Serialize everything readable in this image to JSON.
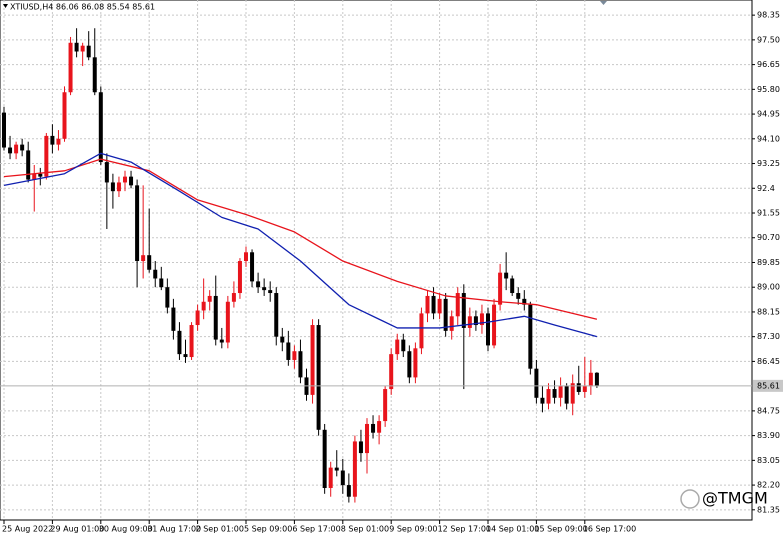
{
  "chart_data": {
    "type": "candlestick",
    "title": "XTIUSD,H4 86.06 86.08 85.54 85.61",
    "watermark": "@TMGM",
    "categories": [
      "25 Aug 2022",
      null,
      null,
      null,
      null,
      null,
      null,
      null,
      "29 Aug 01:00",
      null,
      null,
      null,
      null,
      null,
      null,
      null,
      "30 Aug 09:00",
      null,
      null,
      null,
      null,
      null,
      null,
      null,
      "31 Aug 17:00",
      null,
      null,
      null,
      null,
      null,
      null,
      null,
      "2 Sep 01:00",
      null,
      null,
      null,
      null,
      null,
      null,
      null,
      "5 Sep 09:00",
      null,
      null,
      null,
      null,
      null,
      null,
      null,
      "6 Sep 17:00",
      null,
      null,
      null,
      null,
      null,
      null,
      null,
      "8 Sep 01:00",
      null,
      null,
      null,
      null,
      null,
      null,
      null,
      "9 Sep 09:00",
      null,
      null,
      null,
      null,
      null,
      null,
      null,
      "12 Sep 17:00",
      null,
      null,
      null,
      null,
      null,
      null,
      null,
      "14 Sep 01:00",
      null,
      null,
      null,
      null,
      null,
      null,
      null,
      "15 Sep 09:00",
      null,
      null,
      null,
      null,
      null,
      null,
      null,
      "16 Sep 17:00",
      null,
      null
    ],
    "open": [
      95.0,
      93.8,
      93.6,
      93.9,
      93.7,
      92.7,
      92.9,
      92.8,
      94.2,
      93.9,
      94.1,
      95.7,
      97.4,
      97.1,
      97.3,
      96.9,
      95.7,
      93.3,
      92.6,
      92.3,
      92.6,
      92.8,
      92.5,
      89.9,
      90.1,
      89.6,
      89.3,
      89.0,
      88.3,
      87.5,
      86.7,
      86.6,
      87.7,
      88.2,
      88.5,
      88.7,
      87.2,
      87.1,
      88.5,
      88.8,
      89.9,
      90.2,
      89.2,
      89.0,
      88.9,
      88.8,
      87.3,
      87.1,
      86.5,
      86.8,
      85.9,
      85.3,
      87.7,
      84.1,
      82.1,
      82.8,
      82.7,
      82.2,
      81.8,
      83.7,
      83.3,
      84.3,
      84.0,
      84.4,
      85.5,
      86.7,
      87.2,
      86.8,
      85.9,
      86.9,
      88.1,
      88.7,
      88.1,
      88.6,
      87.5,
      88.0,
      88.8,
      87.6,
      88.0,
      87.7,
      88.1,
      87.0,
      88.4,
      89.5,
      89.3,
      88.8,
      88.6,
      88.4,
      86.2,
      85.2,
      85.0,
      85.5,
      85.2,
      85.6,
      85.0,
      85.7,
      85.4,
      85.6,
      86.06
    ],
    "high": [
      95.2,
      94.2,
      94.0,
      94.1,
      94.0,
      93.2,
      93.1,
      94.3,
      94.6,
      94.4,
      95.9,
      97.6,
      97.9,
      97.4,
      97.8,
      97.9,
      95.9,
      93.6,
      92.9,
      92.8,
      93.0,
      93.0,
      92.7,
      92.5,
      91.7,
      89.9,
      89.7,
      89.3,
      88.6,
      87.8,
      87.2,
      87.8,
      88.4,
      89.3,
      88.9,
      89.4,
      87.6,
      88.7,
      89.2,
      90.0,
      90.4,
      90.3,
      89.5,
      89.3,
      89.2,
      89.0,
      87.6,
      87.5,
      87.0,
      87.2,
      86.2,
      87.9,
      87.9,
      84.3,
      83.0,
      83.4,
      83.1,
      82.6,
      83.9,
      84.1,
      84.5,
      84.6,
      84.6,
      85.6,
      86.9,
      87.4,
      87.4,
      87.0,
      87.1,
      88.3,
      88.9,
      89.0,
      88.8,
      88.8,
      88.2,
      89.0,
      89.1,
      88.3,
      88.2,
      88.4,
      88.3,
      88.6,
      89.8,
      90.2,
      89.4,
      89.0,
      88.9,
      88.5,
      86.5,
      85.6,
      85.7,
      85.8,
      85.9,
      85.7,
      86.0,
      86.3,
      86.6,
      86.5,
      86.08
    ],
    "low": [
      93.7,
      93.4,
      93.4,
      93.5,
      92.6,
      91.6,
      92.5,
      92.7,
      93.6,
      93.7,
      94.0,
      95.6,
      96.9,
      96.6,
      96.8,
      95.6,
      93.2,
      91.0,
      91.7,
      92.1,
      92.3,
      92.4,
      89.0,
      89.3,
      89.5,
      89.0,
      88.9,
      88.1,
      87.2,
      86.5,
      86.4,
      86.5,
      87.5,
      87.9,
      88.2,
      87.0,
      86.9,
      86.9,
      88.3,
      88.6,
      89.7,
      89.0,
      88.8,
      88.7,
      88.5,
      87.0,
      86.8,
      86.3,
      86.2,
      85.7,
      85.1,
      85.0,
      83.9,
      81.9,
      81.8,
      82.5,
      81.9,
      81.6,
      81.6,
      83.0,
      82.6,
      83.8,
      83.6,
      84.2,
      85.3,
      86.5,
      86.6,
      85.7,
      85.7,
      86.7,
      87.8,
      87.9,
      87.9,
      87.3,
      87.2,
      87.7,
      85.5,
      87.3,
      87.5,
      87.4,
      86.8,
      86.9,
      88.2,
      88.9,
      88.7,
      88.4,
      88.2,
      86.0,
      85.0,
      84.7,
      84.8,
      85.0,
      84.9,
      84.8,
      84.6,
      85.3,
      85.2,
      85.3,
      85.54
    ],
    "close": [
      93.8,
      93.6,
      93.9,
      93.7,
      92.7,
      92.9,
      92.8,
      94.2,
      93.9,
      94.1,
      95.7,
      97.4,
      97.1,
      97.3,
      96.9,
      95.7,
      93.3,
      92.6,
      92.3,
      92.6,
      92.8,
      92.5,
      89.9,
      90.1,
      89.6,
      89.3,
      89.0,
      88.3,
      87.5,
      86.7,
      86.6,
      87.7,
      88.2,
      88.5,
      88.7,
      87.2,
      87.1,
      88.5,
      88.8,
      89.9,
      90.2,
      89.2,
      89.0,
      88.9,
      88.8,
      87.3,
      87.1,
      86.5,
      86.8,
      85.9,
      85.3,
      87.7,
      84.1,
      82.1,
      82.8,
      82.7,
      82.2,
      81.8,
      83.7,
      83.3,
      84.3,
      84.0,
      84.4,
      85.5,
      86.7,
      87.2,
      86.8,
      85.9,
      86.9,
      88.1,
      88.7,
      88.1,
      88.6,
      87.5,
      88.0,
      88.8,
      87.6,
      88.0,
      87.7,
      88.1,
      87.0,
      88.4,
      89.5,
      89.3,
      88.8,
      88.6,
      88.4,
      86.2,
      85.2,
      85.0,
      85.5,
      85.2,
      85.6,
      85.0,
      85.7,
      85.4,
      85.6,
      86.06,
      85.61
    ],
    "up_color": "#e8141c",
    "down_color": "#000000",
    "lines": [
      {
        "color": "#e8141c",
        "x": [
          0,
          10,
          16,
          24,
          32,
          40,
          48,
          56,
          65,
          73,
          82,
          88,
          98
        ],
        "values": [
          92.8,
          93.0,
          93.4,
          93.0,
          92.0,
          91.5,
          90.9,
          89.9,
          89.2,
          88.7,
          88.5,
          88.4,
          87.9
        ]
      },
      {
        "color": "#1020b0",
        "x": [
          0,
          10,
          16,
          21,
          29,
          36,
          42,
          49,
          57,
          65,
          72,
          80,
          86,
          91,
          98
        ],
        "values": [
          92.5,
          92.9,
          93.6,
          93.3,
          92.3,
          91.4,
          91.0,
          89.9,
          88.4,
          87.6,
          87.6,
          87.8,
          88.0,
          87.7,
          87.3
        ]
      }
    ],
    "last_price": 85.61,
    "ylim": [
      81.0,
      98.87
    ],
    "yticks": [
      98.35,
      {
        "value": 97.5,
        "label": "97.50"
      },
      96.65,
      {
        "value": 95.8,
        "label": "95.80"
      },
      94.95,
      {
        "value": 94.1,
        "label": "94.10"
      },
      93.25,
      92.4,
      91.55,
      {
        "value": 90.7,
        "label": "90.70"
      },
      89.85,
      {
        "value": 89.0,
        "label": "89.00"
      },
      88.15,
      {
        "value": 87.3,
        "label": "87.30"
      },
      86.45,
      84.75,
      {
        "value": 83.9,
        "label": "83.90"
      },
      83.05,
      {
        "value": 82.2,
        "label": "82.20"
      },
      81.35
    ],
    "grid": true
  }
}
